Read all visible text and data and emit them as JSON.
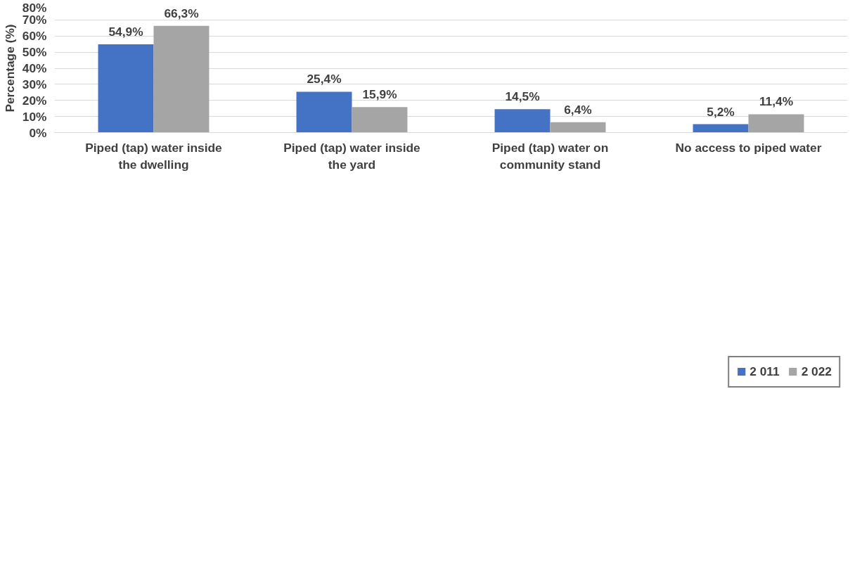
{
  "chart_data": {
    "type": "bar",
    "ylabel": "Percentage (%)",
    "categories": [
      "Piped (tap) water inside the dwelling",
      "Piped (tap) water inside the yard",
      "Piped (tap) water on community stand",
      "No access to piped water"
    ],
    "series": [
      {
        "name": "2 011",
        "color": "#4472c4",
        "values": [
          54.9,
          25.4,
          14.5,
          5.2
        ],
        "value_labels": [
          "54,9%",
          "25,4%",
          "14,5%",
          "5,2%"
        ]
      },
      {
        "name": "2 022",
        "color": "#a5a5a5",
        "values": [
          66.3,
          15.9,
          6.4,
          11.4
        ],
        "value_labels": [
          "66,3%",
          "15,9%",
          "6,4%",
          "11,4%"
        ]
      }
    ],
    "ylim": [
      0,
      80
    ],
    "yticks": [
      {
        "value": 0,
        "label": "0%"
      },
      {
        "value": 10,
        "label": "10%"
      },
      {
        "value": 20,
        "label": "20%"
      },
      {
        "value": 30,
        "label": "30%"
      },
      {
        "value": 40,
        "label": "40%"
      },
      {
        "value": 50,
        "label": "50%"
      },
      {
        "value": 60,
        "label": "60%"
      },
      {
        "value": 70,
        "label": "70%"
      },
      {
        "value": 80,
        "label": "80%"
      }
    ],
    "grid": "y",
    "legend": "bottom"
  }
}
